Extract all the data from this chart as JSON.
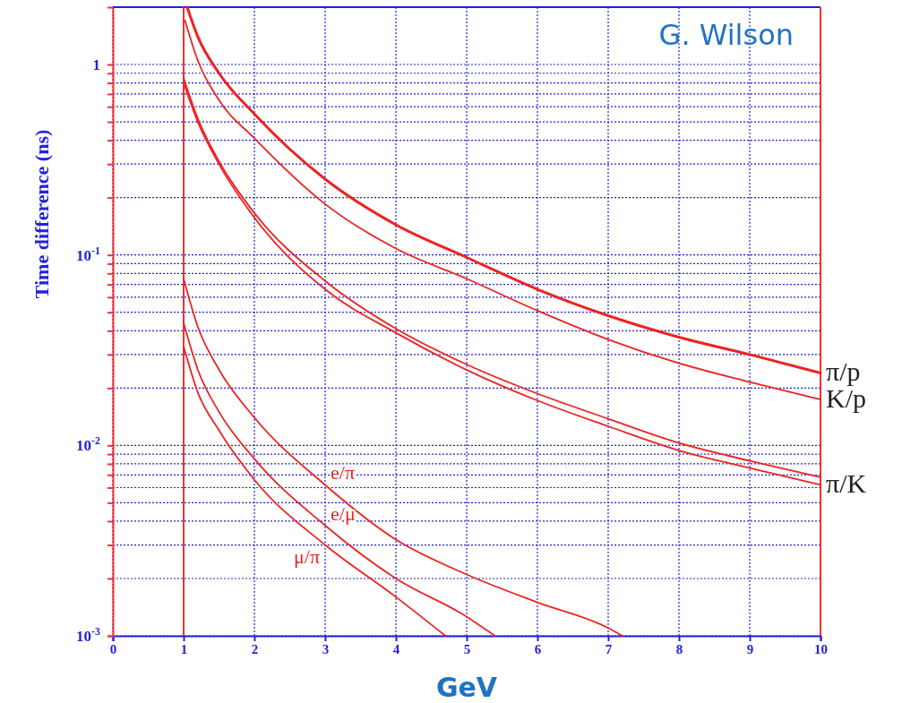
{
  "chart_data": {
    "type": "line",
    "xlabel": "GeV",
    "ylabel": "Time difference (ns)",
    "log": "y",
    "grid": true,
    "line_style": "solid",
    "marker": "none",
    "xlim": [
      0,
      10
    ],
    "ylim": [
      0.001,
      2
    ],
    "xticks": [
      0,
      1,
      2,
      3,
      4,
      5,
      6,
      7,
      8,
      9,
      10
    ],
    "yticks": [
      {
        "value": 0.001,
        "label": "10$^{-3}$"
      },
      {
        "value": 0.002,
        "label": null
      },
      {
        "value": 0.003,
        "label": null
      },
      {
        "value": 0.004,
        "label": null
      },
      {
        "value": 0.005,
        "label": null
      },
      {
        "value": 0.006,
        "label": null
      },
      {
        "value": 0.007,
        "label": null
      },
      {
        "value": 0.008,
        "label": null
      },
      {
        "value": 0.009,
        "label": null
      },
      {
        "value": 0.01,
        "label": "10$^{-2}$"
      },
      {
        "value": 0.02,
        "label": null
      },
      {
        "value": 0.03,
        "label": null
      },
      {
        "value": 0.04,
        "label": null
      },
      {
        "value": 0.05,
        "label": null
      },
      {
        "value": 0.06,
        "label": null
      },
      {
        "value": 0.07,
        "label": null
      },
      {
        "value": 0.08,
        "label": null
      },
      {
        "value": 0.09,
        "label": null
      },
      {
        "value": 0.1,
        "label": "10$^{-1}$"
      },
      {
        "value": 0.2,
        "label": null
      },
      {
        "value": 0.3,
        "label": null
      },
      {
        "value": 0.4,
        "label": null
      },
      {
        "value": 0.5,
        "label": null
      },
      {
        "value": 0.6,
        "label": null
      },
      {
        "value": 0.7,
        "label": null
      },
      {
        "value": 0.8,
        "label": null
      },
      {
        "value": 0.9,
        "label": null
      },
      {
        "value": 1,
        "label": "1"
      }
    ],
    "ref_lines": [
      {
        "axis": "x",
        "value": 1,
        "color": "#ee3333"
      }
    ],
    "annotations": [
      "G. Wilson"
    ],
    "series": [
      {
        "name": "π/p",
        "color": "#ee2222",
        "x": [
          1.05,
          1.2,
          1.5,
          2,
          3,
          4,
          5,
          6,
          7,
          8,
          9,
          10
        ],
        "values": [
          2,
          1.4,
          0.9,
          0.55,
          0.25,
          0.144,
          0.097,
          0.066,
          0.048,
          0.037,
          0.03,
          0.024
        ]
      },
      {
        "name": "K/p",
        "color": "#ee2222",
        "x": [
          1.02,
          1.2,
          1.5,
          2,
          3,
          4,
          5,
          6,
          7,
          8,
          9,
          10
        ],
        "values": [
          1.7,
          1.05,
          0.65,
          0.41,
          0.185,
          0.108,
          0.075,
          0.051,
          0.036,
          0.027,
          0.0215,
          0.0174
        ]
      },
      {
        "color": "#ee2222",
        "x": [
          1,
          1.2,
          1.5,
          2,
          3,
          4,
          5,
          6,
          7,
          8,
          9,
          10
        ],
        "values": [
          0.85,
          0.52,
          0.31,
          0.166,
          0.073,
          0.041,
          0.0266,
          0.0187,
          0.0138,
          0.0103,
          0.0083,
          0.0068
        ]
      },
      {
        "name": "π/K",
        "color": "#ee2222",
        "x": [
          1,
          1.2,
          1.5,
          2,
          3,
          4,
          5,
          6,
          7,
          8,
          9,
          10
        ],
        "values": [
          0.8,
          0.5,
          0.3,
          0.157,
          0.066,
          0.039,
          0.0249,
          0.0172,
          0.0126,
          0.0094,
          0.0076,
          0.0062
        ]
      },
      {
        "name": "e/π",
        "color": "#ee2222",
        "x": [
          1,
          1.2,
          1.5,
          2,
          3,
          4,
          5,
          6,
          7,
          7.2
        ],
        "values": [
          0.075,
          0.042,
          0.025,
          0.014,
          0.0062,
          0.0032,
          0.0021,
          0.0015,
          0.0011,
          0.001
        ]
      },
      {
        "name": "e/μ",
        "color": "#ee2222",
        "x": [
          1,
          1.2,
          1.5,
          2,
          3,
          4,
          5,
          5.4
        ],
        "values": [
          0.044,
          0.025,
          0.015,
          0.0085,
          0.0038,
          0.002,
          0.00126,
          0.001
        ]
      },
      {
        "name": "μ/π",
        "color": "#ee2222",
        "x": [
          1,
          1.2,
          1.5,
          2,
          3,
          4,
          4.7
        ],
        "values": [
          0.033,
          0.019,
          0.012,
          0.0066,
          0.003,
          0.0016,
          0.001
        ]
      }
    ]
  }
}
